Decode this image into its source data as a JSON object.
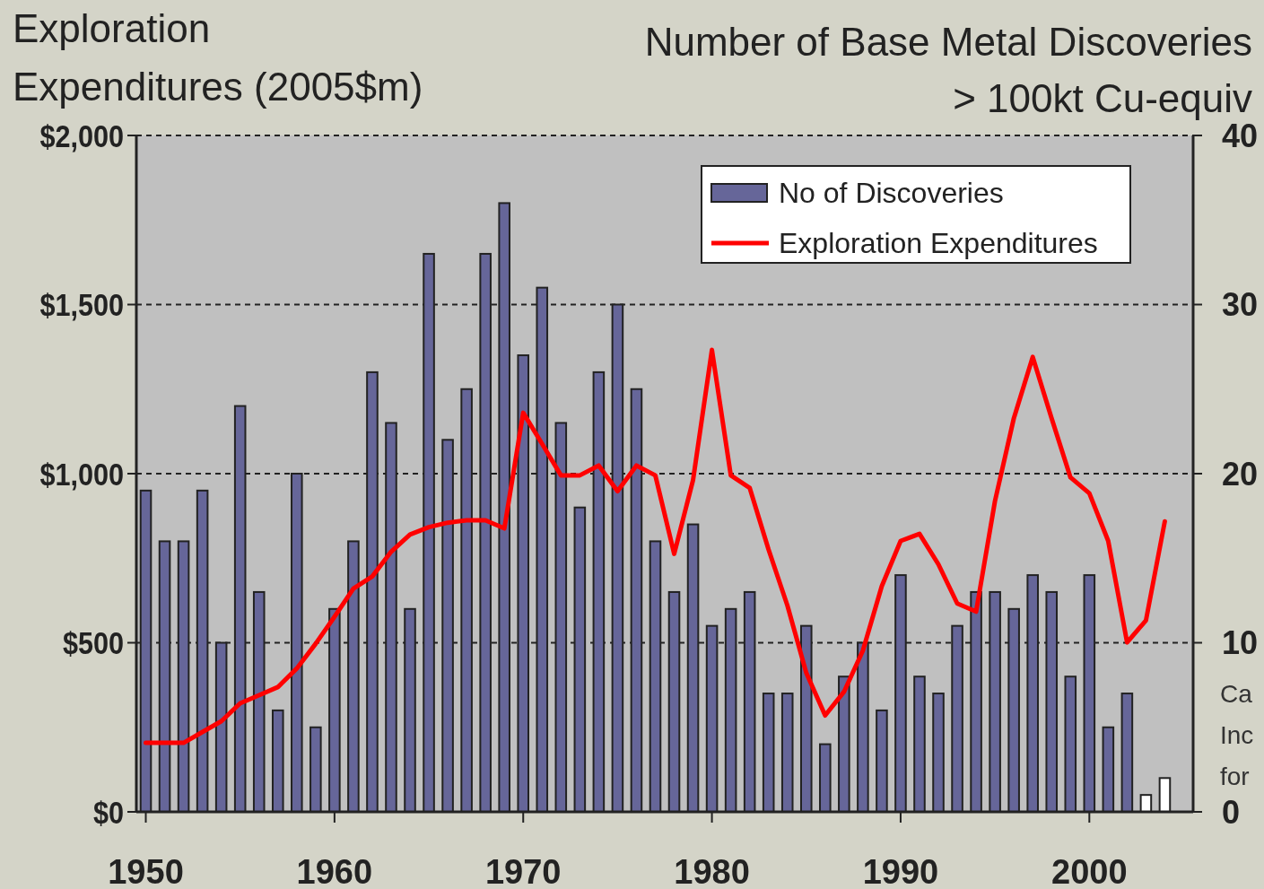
{
  "chart_data": {
    "type": "bar",
    "ylabel": "Exploration Expenditures (2005$m)",
    "y2label": "Number of Base Metal Discoveries > 100kt Cu-equiv",
    "x": [
      1950,
      1951,
      1952,
      1953,
      1954,
      1955,
      1956,
      1957,
      1958,
      1959,
      1960,
      1961,
      1962,
      1963,
      1964,
      1965,
      1966,
      1967,
      1968,
      1969,
      1970,
      1971,
      1972,
      1973,
      1974,
      1975,
      1976,
      1977,
      1978,
      1979,
      1980,
      1981,
      1982,
      1983,
      1984,
      1985,
      1986,
      1987,
      1988,
      1989,
      1990,
      1991,
      1992,
      1993,
      1994,
      1995,
      1996,
      1997,
      1998,
      1999,
      2000,
      2001,
      2002,
      2003,
      2004
    ],
    "xlim": [
      1949.5,
      2005.5
    ],
    "xticks": [
      1950,
      1960,
      1970,
      1980,
      1990,
      2000
    ],
    "ylim": [
      0,
      2000
    ],
    "yticks": [
      {
        "value": 0,
        "label": "$0"
      },
      {
        "value": 500,
        "label": "$500"
      },
      {
        "value": 1000,
        "label": "$1,000"
      },
      {
        "value": 1500,
        "label": "$1,500"
      },
      {
        "value": 2000,
        "label": "$2,000"
      }
    ],
    "y2lim": [
      0,
      40
    ],
    "y2ticks": [
      0,
      10,
      20,
      30,
      40
    ],
    "grid": "y",
    "legend": "top right",
    "series": [
      {
        "name": "No of Discoveries",
        "axis": "y2",
        "color": "#666699",
        "colors": [
          "#666699",
          "#666699",
          "#666699",
          "#666699",
          "#666699",
          "#666699",
          "#666699",
          "#666699",
          "#666699",
          "#666699",
          "#666699",
          "#666699",
          "#666699",
          "#666699",
          "#666699",
          "#666699",
          "#666699",
          "#666699",
          "#666699",
          "#666699",
          "#666699",
          "#666699",
          "#666699",
          "#666699",
          "#666699",
          "#666699",
          "#666699",
          "#666699",
          "#666699",
          "#666699",
          "#666699",
          "#666699",
          "#666699",
          "#666699",
          "#666699",
          "#666699",
          "#666699",
          "#666699",
          "#666699",
          "#666699",
          "#666699",
          "#666699",
          "#666699",
          "#666699",
          "#666699",
          "#666699",
          "#666699",
          "#666699",
          "#666699",
          "#666699",
          "#666699",
          "#666699",
          "#666699",
          "#ffffff",
          "#ffffff"
        ],
        "values": [
          19,
          16,
          16,
          19,
          10,
          24,
          13,
          6,
          20,
          5,
          12,
          16,
          26,
          23,
          12,
          33,
          22,
          25,
          33,
          36,
          27,
          31,
          23,
          18,
          26,
          30,
          25,
          16,
          13,
          17,
          11,
          12,
          13,
          7,
          7,
          11,
          4,
          8,
          10,
          6,
          14,
          8,
          7,
          11,
          13,
          13,
          12,
          14,
          13,
          8,
          14,
          5,
          7,
          1,
          2
        ]
      },
      {
        "name": "Exploration Expenditures",
        "type": "line",
        "axis": "y",
        "color": "#ff0000",
        "values": [
          204,
          204,
          204,
          236,
          268,
          321,
          345,
          369,
          424,
          497,
          577,
          660,
          696,
          769,
          820,
          842,
          855,
          862,
          862,
          838,
          1180,
          1088,
          995,
          995,
          1024,
          948,
          1024,
          995,
          763,
          981,
          1366,
          995,
          958,
          776,
          610,
          411,
          285,
          355,
          477,
          667,
          801,
          822,
          732,
          616,
          592,
          919,
          1164,
          1345,
          1164,
          989,
          942,
          801,
          501,
          566,
          859
        ]
      }
    ],
    "annotations": [
      "Ca\nInc\nfor"
    ]
  }
}
